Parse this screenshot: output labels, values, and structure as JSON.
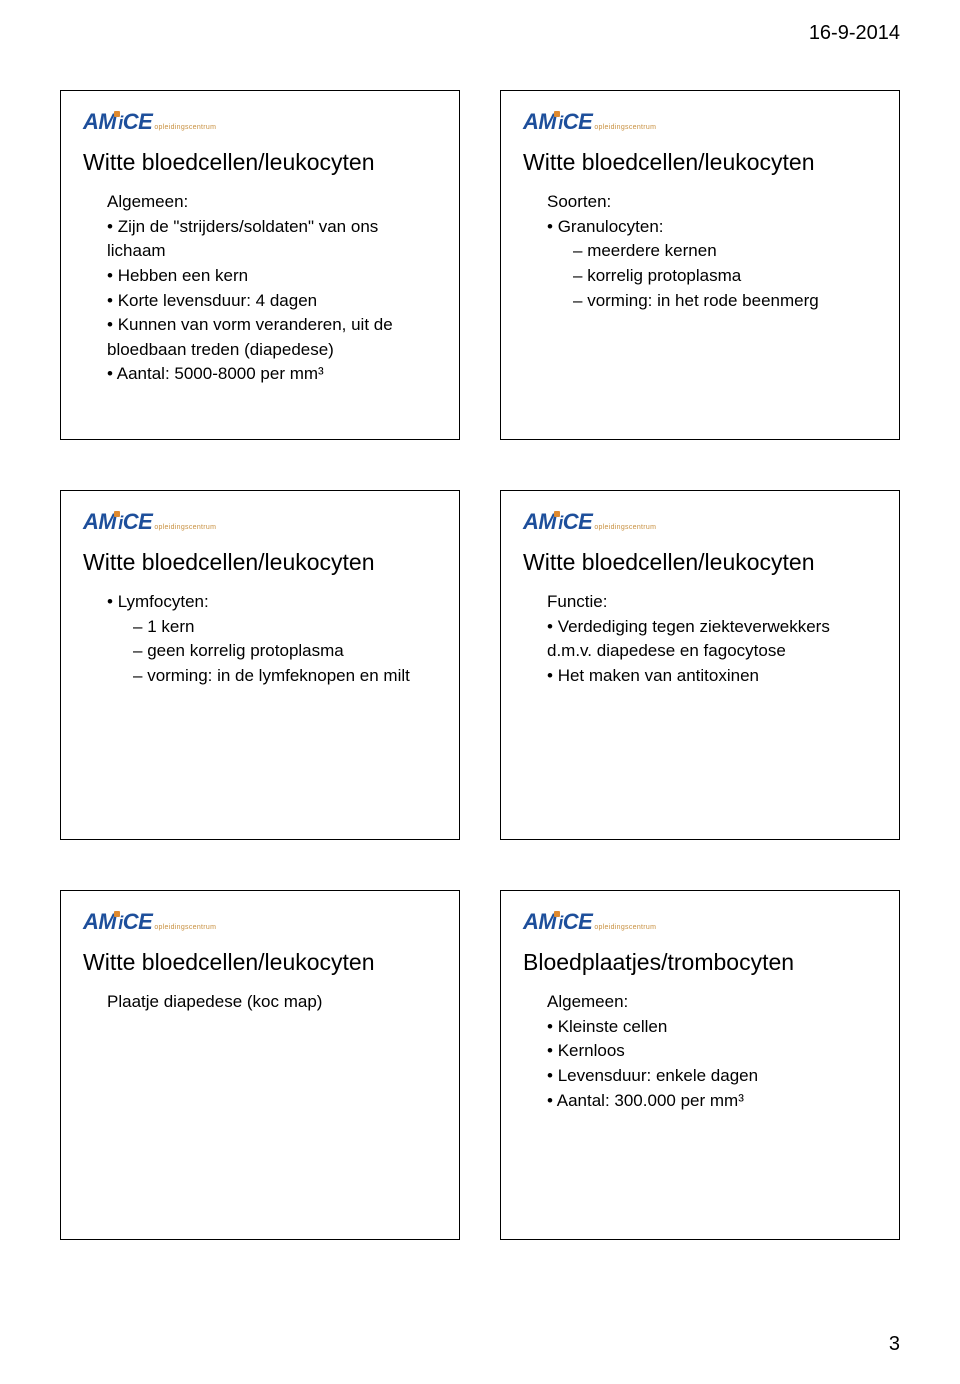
{
  "header": {
    "date": "16-9-2014",
    "page_number": "3"
  },
  "logo": {
    "brand": "AMiCE",
    "sub": "opleidingscentrum"
  },
  "slides": [
    {
      "title": "Witte bloedcellen/leukocyten",
      "lines": [
        {
          "lvl": 1,
          "b": "none",
          "text": "Algemeen:"
        },
        {
          "lvl": 1,
          "b": "dot",
          "text": "Zijn de \"strijders/soldaten\" van ons lichaam"
        },
        {
          "lvl": 1,
          "b": "dot",
          "text": "Hebben een kern"
        },
        {
          "lvl": 1,
          "b": "dot",
          "text": "Korte levensduur:   4 dagen"
        },
        {
          "lvl": 1,
          "b": "dot",
          "text": "Kunnen van vorm veranderen, uit de bloedbaan treden (diapedese)"
        },
        {
          "lvl": 1,
          "b": "dot",
          "text": "Aantal:   5000-8000 per mm³"
        }
      ]
    },
    {
      "title": "Witte bloedcellen/leukocyten",
      "lines": [
        {
          "lvl": 1,
          "b": "none",
          "text": "Soorten:"
        },
        {
          "lvl": 1,
          "b": "dot",
          "text": "Granulocyten:"
        },
        {
          "lvl": 2,
          "b": "dash",
          "text": "meerdere kernen"
        },
        {
          "lvl": 2,
          "b": "dash",
          "text": "korrelig protoplasma"
        },
        {
          "lvl": 2,
          "b": "dash",
          "text": "vorming: in het rode beenmerg"
        }
      ]
    },
    {
      "title": "Witte bloedcellen/leukocyten",
      "lines": [
        {
          "lvl": 1,
          "b": "dot",
          "text": "Lymfocyten:"
        },
        {
          "lvl": 2,
          "b": "dash",
          "text": "1 kern"
        },
        {
          "lvl": 2,
          "b": "dash",
          "text": "geen korrelig protoplasma"
        },
        {
          "lvl": 2,
          "b": "dash",
          "text": "vorming: in de lymfeknopen en milt"
        }
      ]
    },
    {
      "title": "Witte bloedcellen/leukocyten",
      "lines": [
        {
          "lvl": 1,
          "b": "none",
          "text": "Functie:"
        },
        {
          "lvl": 1,
          "b": "dot",
          "text": "Verdediging tegen ziekteverwekkers d.m.v. diapedese en fagocytose"
        },
        {
          "lvl": 1,
          "b": "dot",
          "text": "Het maken van antitoxinen"
        }
      ]
    },
    {
      "title": "Witte bloedcellen/leukocyten",
      "lines": [
        {
          "lvl": 1,
          "b": "none",
          "text": "Plaatje diapedese (koc map)"
        }
      ]
    },
    {
      "title": "Bloedplaatjes/trombocyten",
      "lines": [
        {
          "lvl": 1,
          "b": "none",
          "text": "Algemeen:"
        },
        {
          "lvl": 1,
          "b": "dot",
          "text": "Kleinste cellen"
        },
        {
          "lvl": 1,
          "b": "dot",
          "text": "Kernloos"
        },
        {
          "lvl": 1,
          "b": "dot",
          "text": "Levensduur: enkele dagen"
        },
        {
          "lvl": 1,
          "b": "dot",
          "text": "Aantal:   300.000 per mm³"
        }
      ]
    }
  ]
}
